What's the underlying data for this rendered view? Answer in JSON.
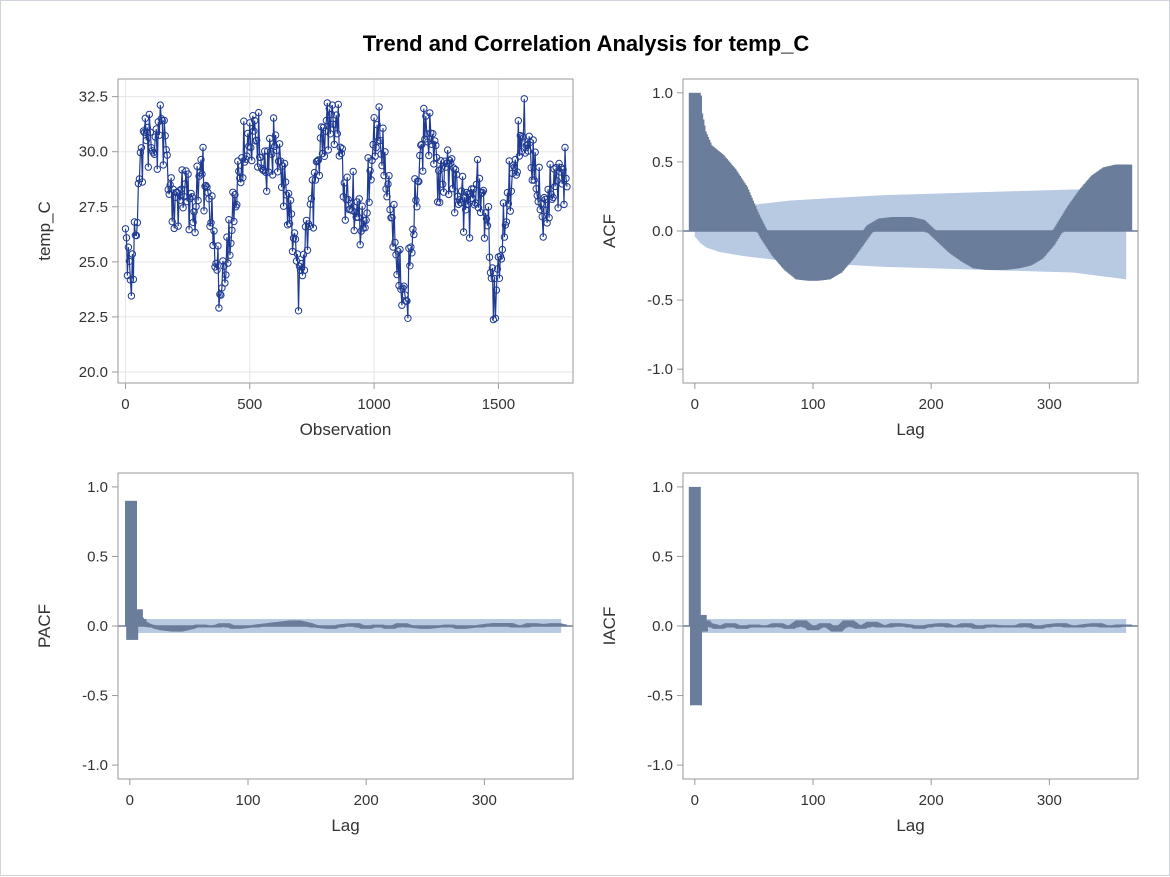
{
  "figure": {
    "title": "Trend and Correlation Analysis for temp_C"
  },
  "colors": {
    "series_line": "#1f3a93",
    "bar_fill": "#6a7d9a",
    "conf_band": "#b8c9e2",
    "axis": "#999999",
    "grid": "#e6e6e6",
    "zero_line": "#6a7d9a"
  },
  "chart_data": [
    {
      "id": "trend",
      "type": "line",
      "title": "",
      "xlabel": "Observation",
      "ylabel": "temp_C",
      "xlim": [
        -30,
        1800
      ],
      "ylim": [
        19.5,
        33.3
      ],
      "xticks": [
        0,
        500,
        1000,
        1500
      ],
      "yticks": [
        20.0,
        22.5,
        25.0,
        27.5,
        30.0,
        32.5
      ],
      "ytick_labels": [
        "20.0",
        "22.5",
        "25.0",
        "27.5",
        "30.0",
        "32.5"
      ],
      "grid": true,
      "markers": "open-circle",
      "n_observations": 1780,
      "series": [
        {
          "x": [
            0,
            20,
            40,
            60,
            80,
            100,
            120,
            140,
            160,
            180,
            200,
            240,
            280,
            300,
            340,
            380,
            420,
            450,
            480,
            520,
            560,
            600,
            640,
            680,
            700,
            740,
            780,
            820,
            860,
            880,
            920,
            960,
            1000,
            1020,
            1060,
            1100,
            1130,
            1160,
            1200,
            1240,
            1260,
            1300,
            1340,
            1380,
            1420,
            1460,
            1480,
            1500,
            1540,
            1570,
            1600,
            1640,
            1680,
            1720,
            1760,
            1780
          ],
          "y": [
            26.5,
            24.0,
            26.0,
            29.5,
            31.0,
            30.5,
            30.0,
            31.5,
            30.5,
            28.0,
            27.5,
            28.5,
            27.0,
            29.5,
            27.5,
            23.5,
            26.0,
            28.5,
            30.0,
            31.0,
            29.0,
            30.5,
            28.5,
            26.0,
            24.0,
            27.0,
            30.0,
            31.5,
            31.0,
            28.0,
            27.5,
            26.5,
            30.5,
            31.0,
            28.0,
            24.5,
            23.0,
            27.0,
            31.0,
            30.5,
            28.5,
            29.5,
            28.0,
            27.5,
            28.5,
            26.5,
            23.0,
            24.5,
            28.0,
            29.5,
            31.0,
            29.5,
            27.0,
            28.5,
            29.0,
            28.5
          ]
        }
      ]
    },
    {
      "id": "acf",
      "type": "bar",
      "title": "",
      "xlabel": "Lag",
      "ylabel": "ACF",
      "xlim": [
        -10,
        375
      ],
      "ylim": [
        -1.1,
        1.1
      ],
      "xticks": [
        0,
        100,
        200,
        300
      ],
      "yticks": [
        -1.0,
        -0.5,
        0.0,
        0.5,
        1.0
      ],
      "ytick_labels": [
        "-1.0",
        "-0.5",
        "0.0",
        "0.5",
        "1.0"
      ],
      "lags": [
        0,
        1,
        2,
        5,
        10,
        20,
        30,
        40,
        50,
        60,
        70,
        80,
        90,
        100,
        110,
        120,
        130,
        140,
        150,
        160,
        170,
        180,
        190,
        200,
        210,
        220,
        230,
        240,
        250,
        260,
        270,
        280,
        290,
        300,
        310,
        320,
        330,
        340,
        350,
        360,
        365
      ],
      "values": [
        1.0,
        0.98,
        0.85,
        0.72,
        0.62,
        0.55,
        0.45,
        0.32,
        0.12,
        -0.05,
        -0.18,
        -0.28,
        -0.35,
        -0.36,
        -0.35,
        -0.3,
        -0.2,
        -0.08,
        0.04,
        0.09,
        0.1,
        0.1,
        0.08,
        0.0,
        -0.08,
        -0.16,
        -0.22,
        -0.27,
        -0.28,
        -0.28,
        -0.27,
        -0.25,
        -0.2,
        -0.1,
        0.04,
        0.18,
        0.3,
        0.4,
        0.46,
        0.48,
        0.48
      ],
      "confidence_band": {
        "lags": [
          0,
          5,
          10,
          20,
          40,
          80,
          120,
          160,
          200,
          240,
          280,
          320,
          365
        ],
        "upper": [
          0.04,
          0.09,
          0.12,
          0.15,
          0.18,
          0.22,
          0.24,
          0.26,
          0.27,
          0.28,
          0.29,
          0.3,
          0.31
        ],
        "lower": [
          -0.04,
          -0.09,
          -0.12,
          -0.15,
          -0.18,
          -0.22,
          -0.24,
          -0.26,
          -0.27,
          -0.28,
          -0.29,
          -0.3,
          -0.35
        ]
      }
    },
    {
      "id": "pacf",
      "type": "bar",
      "title": "",
      "xlabel": "Lag",
      "ylabel": "PACF",
      "xlim": [
        -10,
        375
      ],
      "ylim": [
        -1.1,
        1.1
      ],
      "xticks": [
        0,
        100,
        200,
        300
      ],
      "yticks": [
        -1.0,
        -0.5,
        0.0,
        0.5,
        1.0
      ],
      "ytick_labels": [
        "-1.0",
        "-0.5",
        "0.0",
        "0.5",
        "1.0"
      ],
      "lags": [
        1,
        2,
        3,
        4,
        5,
        6,
        7,
        8,
        9,
        10,
        12,
        15,
        20,
        25,
        30,
        40,
        50,
        60,
        70,
        80,
        90,
        100,
        110,
        120,
        130,
        140,
        150,
        160,
        170,
        180,
        190,
        200,
        210,
        220,
        230,
        240,
        250,
        260,
        270,
        280,
        290,
        300,
        310,
        320,
        330,
        340,
        350,
        360,
        365
      ],
      "values": [
        0.9,
        -0.1,
        0.05,
        0.1,
        0.08,
        0.12,
        0.06,
        0.04,
        0.05,
        0.03,
        0.02,
        0.01,
        0.0,
        -0.02,
        -0.03,
        -0.04,
        -0.02,
        0.01,
        -0.01,
        0.02,
        -0.02,
        -0.01,
        0.01,
        0.02,
        0.03,
        0.04,
        0.02,
        -0.01,
        -0.02,
        0.01,
        0.02,
        -0.02,
        0.01,
        -0.02,
        0.02,
        -0.01,
        -0.02,
        -0.01,
        0.01,
        -0.02,
        -0.01,
        0.01,
        0.02,
        0.02,
        -0.01,
        0.02,
        0.01,
        0.02,
        0.01
      ],
      "confidence_band": {
        "upper": 0.05,
        "lower": -0.05
      }
    },
    {
      "id": "iacf",
      "type": "bar",
      "title": "",
      "xlabel": "Lag",
      "ylabel": "IACF",
      "xlim": [
        -10,
        375
      ],
      "ylim": [
        -1.1,
        1.1
      ],
      "xticks": [
        0,
        100,
        200,
        300
      ],
      "yticks": [
        -1.0,
        -0.5,
        0.0,
        0.5,
        1.0
      ],
      "ytick_labels": [
        "-1.0",
        "-0.5",
        "0.0",
        "0.5",
        "1.0"
      ],
      "lags": [
        0,
        1,
        2,
        3,
        4,
        5,
        6,
        7,
        8,
        10,
        15,
        20,
        30,
        40,
        50,
        60,
        70,
        80,
        90,
        100,
        110,
        120,
        130,
        140,
        150,
        160,
        170,
        180,
        190,
        200,
        210,
        220,
        230,
        240,
        250,
        260,
        270,
        280,
        290,
        300,
        310,
        320,
        330,
        340,
        350,
        360,
        365
      ],
      "values": [
        1.0,
        -0.57,
        0.02,
        0.05,
        0.03,
        0.08,
        -0.04,
        0.02,
        0.04,
        0.02,
        0.01,
        -0.02,
        0.02,
        -0.02,
        0.01,
        -0.01,
        0.02,
        -0.02,
        0.04,
        -0.03,
        0.02,
        -0.04,
        0.04,
        -0.02,
        0.03,
        -0.01,
        0.02,
        0.01,
        -0.02,
        0.01,
        0.02,
        -0.01,
        0.02,
        -0.02,
        0.01,
        0.0,
        -0.01,
        0.02,
        -0.02,
        0.01,
        0.02,
        -0.01,
        0.01,
        0.02,
        -0.01,
        0.01,
        0.01
      ],
      "confidence_band": {
        "upper": 0.05,
        "lower": -0.05
      }
    }
  ]
}
